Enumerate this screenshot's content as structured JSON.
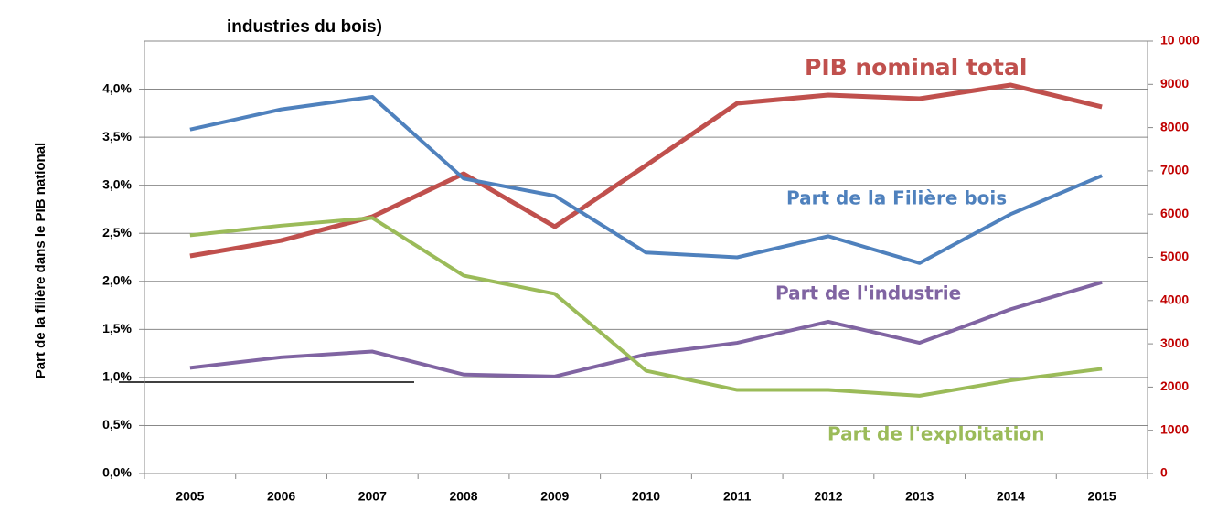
{
  "chart_data": {
    "type": "line",
    "title": "industries  du bois)",
    "y_label": "Part de la filière dans le PIB national",
    "categories": [
      "2005",
      "2006",
      "2007",
      "2008",
      "2009",
      "2010",
      "2011",
      "2012",
      "2013",
      "2014",
      "2015"
    ],
    "ylim": [
      0,
      4.5
    ],
    "yticks": [
      {
        "value": 0,
        "label": "0,0%"
      },
      {
        "value": 0.5,
        "label": "0,5%"
      },
      {
        "value": 1.0,
        "label": "1,0%"
      },
      {
        "value": 1.5,
        "label": "1,5%"
      },
      {
        "value": 2.0,
        "label": "2,0%"
      },
      {
        "value": 2.5,
        "label": "2,5%"
      },
      {
        "value": 3.0,
        "label": "3,0%"
      },
      {
        "value": 3.5,
        "label": "3,5%"
      },
      {
        "value": 4.0,
        "label": "4,0%"
      }
    ],
    "y2lim": [
      0,
      10000
    ],
    "y2ticks": [
      0,
      1000,
      2000,
      3000,
      4000,
      5000,
      6000,
      7000,
      8000,
      9000,
      {
        "value": 10000,
        "label": "10 000"
      }
    ],
    "y2_color": "#c00000",
    "grid": true,
    "series": [
      {
        "name": "PIB nominal total",
        "color": "#c0504d",
        "axis": "y2",
        "values": [
          5032,
          5390,
          5940,
          6934,
          5708,
          7125,
          8562,
          8753,
          8668,
          8985,
          8478
        ]
      },
      {
        "name": "Part de la Filière bois",
        "color": "#4f81bd",
        "values": [
          3.58,
          3.79,
          3.92,
          3.07,
          2.89,
          2.3,
          2.25,
          2.47,
          2.19,
          2.7,
          3.1
        ]
      },
      {
        "name": "Part de l'industrie",
        "color": "#8064a2",
        "values": [
          1.1,
          1.21,
          1.27,
          1.03,
          1.01,
          1.24,
          1.36,
          1.58,
          1.36,
          1.71,
          1.99
        ]
      },
      {
        "name": "Part de l'exploitation",
        "color": "#9bbb59",
        "values": [
          2.48,
          2.58,
          2.66,
          2.06,
          1.87,
          1.07,
          0.87,
          0.87,
          0.81,
          0.97,
          1.09
        ]
      }
    ]
  }
}
